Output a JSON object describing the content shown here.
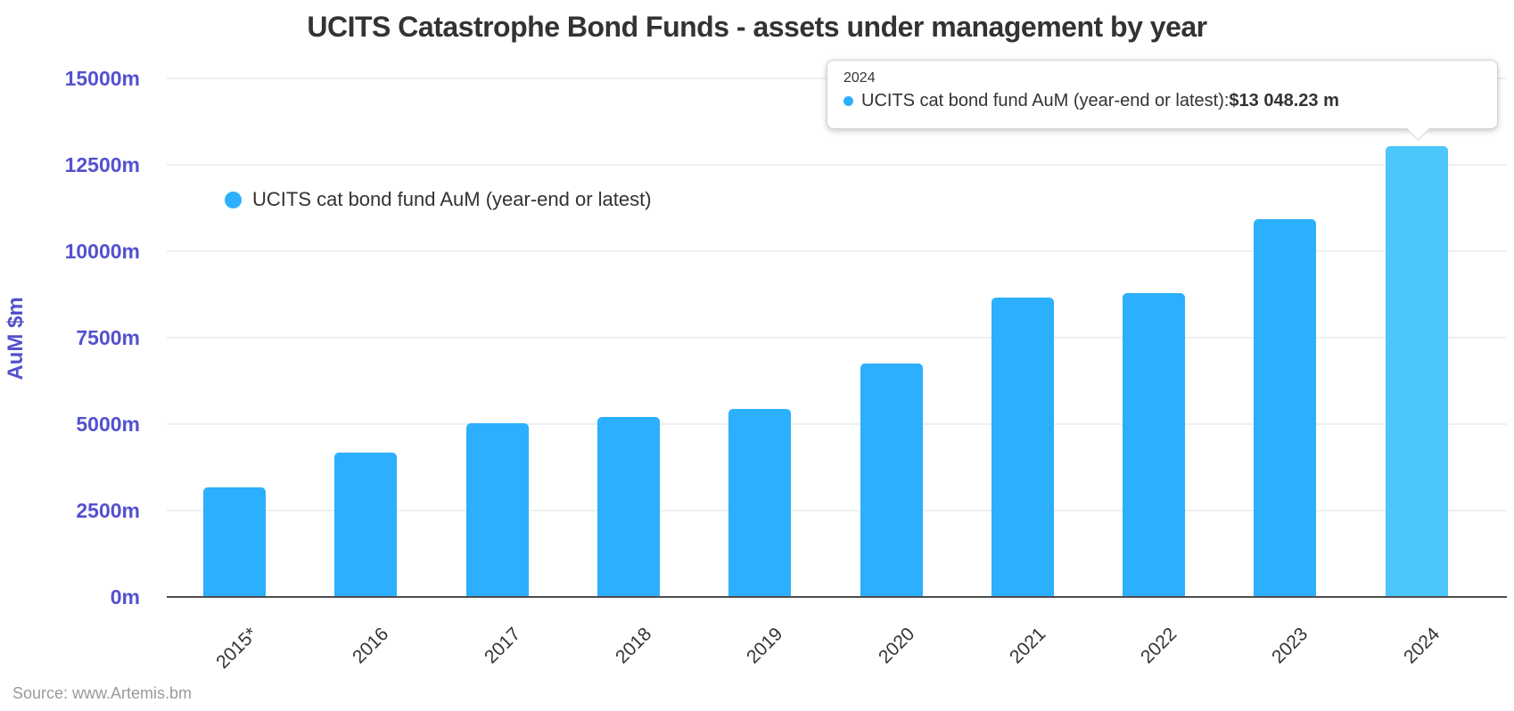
{
  "chart_data": {
    "type": "bar",
    "title": "UCITS Catastrophe Bond Funds - assets under management by year",
    "xlabel": "",
    "ylabel": "AuM $m",
    "ylim": [
      0,
      15000
    ],
    "grid": true,
    "legend_position": "top-left-inside",
    "y_tick_values": [
      15000,
      12500,
      10000,
      7500,
      5000,
      2500,
      0
    ],
    "y_tick_labels": [
      "15000m",
      "12500m",
      "10000m",
      "7500m",
      "5000m",
      "2500m",
      "0m"
    ],
    "categories": [
      "2015*",
      "2016",
      "2017",
      "2018",
      "2019",
      "2020",
      "2021",
      "2022",
      "2023",
      "2024"
    ],
    "series": [
      {
        "name": "UCITS cat bond fund AuM (year-end or latest)",
        "values": [
          3170,
          4175,
          5025,
          5205,
          5440,
          6755,
          8660,
          8790,
          10930,
          13048.23
        ]
      }
    ],
    "highlighted_index": 9
  },
  "tooltip": {
    "header": "2024",
    "series_label": "UCITS cat bond fund AuM (year-end or latest): ",
    "value": "$13 048.23 m"
  },
  "source": {
    "text": "Source: www.Artemis.bm"
  },
  "colors": {
    "bar": "#2CAFFC",
    "bar_highlight": "#4CC6FB",
    "axis_text": "#5451CE",
    "grid": "#EFEFEF",
    "axis_line": "#4D4D4D",
    "title_text": "#333333",
    "source_text": "#999999"
  }
}
